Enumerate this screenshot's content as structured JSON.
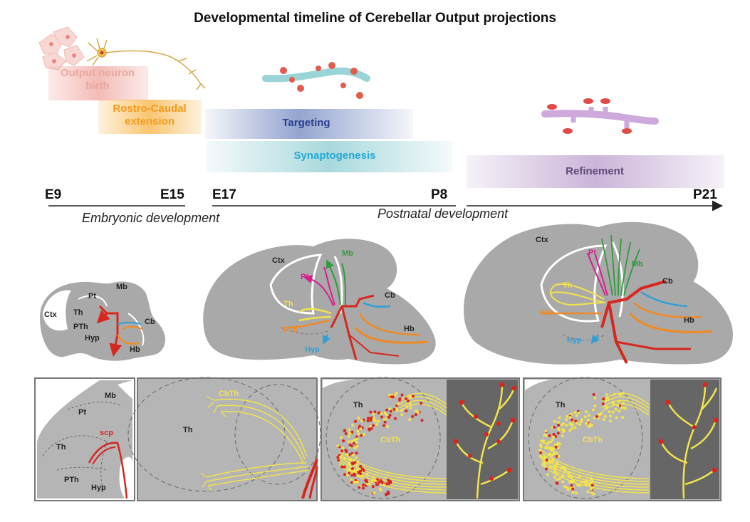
{
  "title": "Developmental timeline of Cerebellar Output projections",
  "stages": {
    "birth": "Output neuron birth",
    "extension": "Rostro-Caudal extension",
    "targeting": "Targeting",
    "synaptogenesis": "Synaptogenesis",
    "refinement": "Refinement"
  },
  "timepoints": [
    "E9",
    "E15",
    "E17",
    "P8",
    "P21"
  ],
  "periods": {
    "embryonic": "Embryonic development",
    "postnatal": "Postnatal development"
  },
  "brain_labels": {
    "ctx": "Ctx",
    "pt": "Pt",
    "mb": "Mb",
    "th": "Th",
    "pth": "PTh",
    "hyp": "Hyp",
    "cb": "Cb",
    "hb": "Hb"
  },
  "panel_labels": {
    "mb": "Mb",
    "pt": "Pt",
    "scp": "scp",
    "th": "Th",
    "pth": "PTh",
    "hyp": "Hyp",
    "cbth": "CbTh"
  },
  "colors": {
    "red": "#d7261e",
    "orange": "#f08a24",
    "green": "#2e9b3c",
    "magenta": "#d61f8c",
    "yellow": "#f2e34b",
    "blue": "#2f9fd8",
    "brain": "#a9a9a9",
    "navy": "#2a3f8f",
    "cyan": "#23a9d6",
    "purple": "#6b4a8c",
    "salmon": "#e67b6e"
  }
}
